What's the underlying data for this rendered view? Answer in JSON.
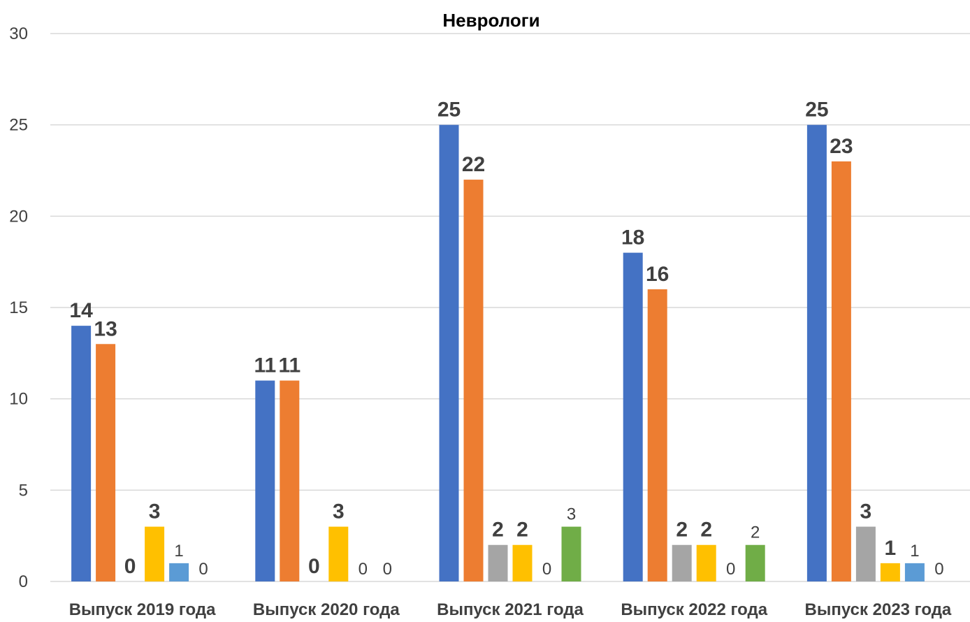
{
  "chart_data": {
    "type": "bar",
    "title": "Неврологи",
    "categories": [
      "Выпуск 2019 года",
      "Выпуск 2020 года",
      "Выпуск 2021 года",
      "Выпуск 2022 года",
      "Выпуск 2023 года"
    ],
    "yticks": [
      "0",
      "5",
      "10",
      "15",
      "20",
      "25",
      "30"
    ],
    "ylim": [
      0,
      30
    ],
    "grid": true,
    "legend": "none",
    "series": [
      {
        "color": "#4472c4",
        "values": [
          14,
          11,
          25,
          18,
          25
        ],
        "labels": [
          "14",
          "11",
          "25",
          "18",
          "25"
        ],
        "label_bold": true
      },
      {
        "color": "#ed7d31",
        "values": [
          13,
          11,
          22,
          16,
          23
        ],
        "labels": [
          "13",
          "11",
          "22",
          "16",
          "23"
        ],
        "label_bold": true
      },
      {
        "color": "#a5a5a5",
        "values": [
          0,
          0,
          2,
          2,
          3
        ],
        "labels": [
          "0",
          "0",
          "2",
          "2",
          "3"
        ],
        "label_bold": true
      },
      {
        "color": "#ffc000",
        "values": [
          3,
          3,
          2,
          2,
          1
        ],
        "labels": [
          "3",
          "3",
          "2",
          "2",
          "1"
        ],
        "label_bold": true
      },
      {
        "color": "#5b9bd5",
        "values": [
          1,
          0,
          0,
          0,
          1
        ],
        "labels": [
          "1",
          "0",
          "0",
          "0",
          "1"
        ],
        "label_bold": false
      },
      {
        "color": "#70ad47",
        "values": [
          0,
          0,
          3,
          2,
          0
        ],
        "labels": [
          "0",
          "0",
          "3",
          "2",
          "0"
        ],
        "label_bold": false
      }
    ]
  }
}
